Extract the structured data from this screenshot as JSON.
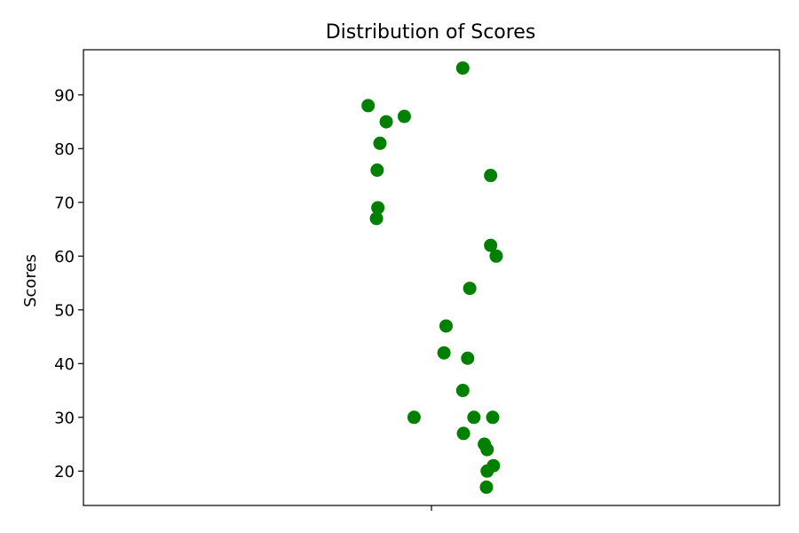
{
  "chart_data": {
    "type": "scatter",
    "title": "Distribution of Scores",
    "xlabel": "",
    "ylabel": "Scores",
    "xlim": [
      -0.5,
      0.5
    ],
    "ylim": [
      13.6,
      98.4
    ],
    "x_ticks": [
      0
    ],
    "x_tick_labels": [
      ""
    ],
    "y_ticks": [
      20,
      30,
      40,
      50,
      60,
      70,
      80,
      90
    ],
    "grid": false,
    "legend": "none",
    "colors": {
      "point": "#008000"
    },
    "points": [
      {
        "x": 0.045,
        "y": 95
      },
      {
        "x": -0.091,
        "y": 88
      },
      {
        "x": -0.039,
        "y": 86
      },
      {
        "x": -0.065,
        "y": 85
      },
      {
        "x": -0.074,
        "y": 81
      },
      {
        "x": -0.078,
        "y": 76
      },
      {
        "x": 0.085,
        "y": 75
      },
      {
        "x": -0.077,
        "y": 69
      },
      {
        "x": -0.079,
        "y": 67
      },
      {
        "x": 0.085,
        "y": 62
      },
      {
        "x": 0.093,
        "y": 60
      },
      {
        "x": 0.055,
        "y": 54
      },
      {
        "x": 0.021,
        "y": 47
      },
      {
        "x": 0.018,
        "y": 42
      },
      {
        "x": 0.052,
        "y": 41
      },
      {
        "x": 0.045,
        "y": 35
      },
      {
        "x": -0.025,
        "y": 30
      },
      {
        "x": 0.061,
        "y": 30
      },
      {
        "x": 0.088,
        "y": 30
      },
      {
        "x": 0.046,
        "y": 27
      },
      {
        "x": 0.076,
        "y": 25
      },
      {
        "x": 0.08,
        "y": 24
      },
      {
        "x": 0.089,
        "y": 21
      },
      {
        "x": 0.08,
        "y": 20
      },
      {
        "x": 0.079,
        "y": 17
      }
    ]
  }
}
